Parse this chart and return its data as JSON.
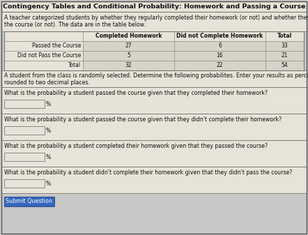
{
  "title": "Contingency Tables and Conditional Probability: Homework and Passing a Course",
  "description": "A teacher categorized students by whether they regularly completed their homework (or not) and whether they passed\nthe course (or not). The data are in the table below.",
  "table_headers": [
    "",
    "Completed Homework",
    "Did not Complete Homework",
    "Total"
  ],
  "table_rows": [
    [
      "Passed the Course",
      "27",
      "6",
      "33"
    ],
    [
      "Did not Pass the Course",
      "5",
      "16",
      "21"
    ],
    [
      "Total",
      "32",
      "22",
      "54"
    ]
  ],
  "instruction": "A student from the class is randomly selected. Determine the following probabilites. Enter your results as percents\nrounded to two decimal places.",
  "questions": [
    "What is the probability a student passed the course given that they completed their homework?",
    "What is the probability a student passed the course given that they didn't complete their homework?",
    "What is the probability a student completed their homework given that they passed the course?",
    "What is the probability a student didn't complete their homework given that they didn't pass the course?"
  ],
  "outer_bg": "#c8c8c8",
  "content_bg": "#e8e3d8",
  "table_cell_bg": "#d8d3c8",
  "input_box_color": "#e8e3d8",
  "button_color": "#3366bb",
  "button_text": "Submit Question",
  "font_size_title": 6.8,
  "font_size_body": 5.6,
  "font_size_table": 5.5
}
